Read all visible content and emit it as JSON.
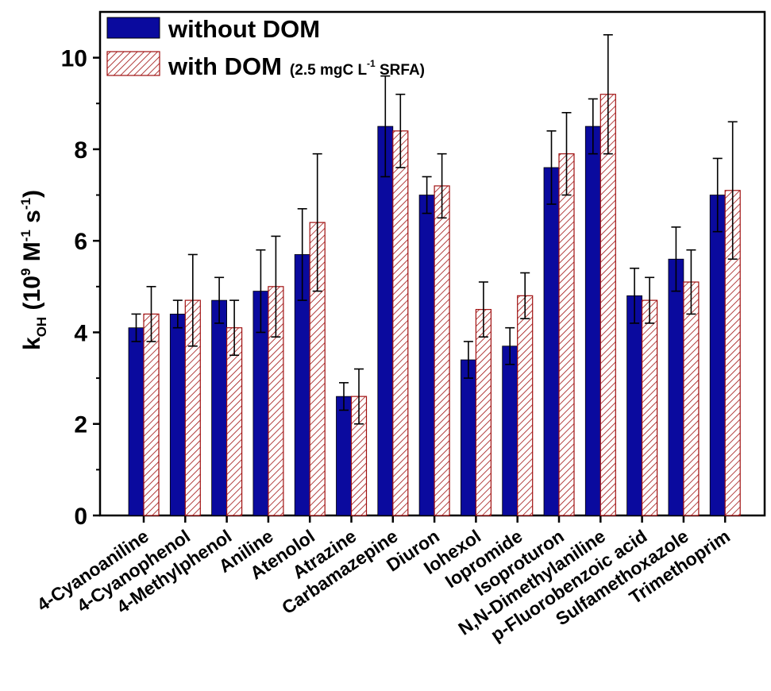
{
  "chart_data": {
    "type": "bar",
    "title": "",
    "xlabel": "",
    "ylabel": {
      "k": "k",
      "k_sub": "OH",
      "open": " (10",
      "exp1": "9",
      "mid": " M",
      "exp2": "-1",
      "mid2": " s",
      "exp3": "-1",
      "close": ")"
    },
    "ylim": [
      0,
      11
    ],
    "yticks": [
      0,
      2,
      4,
      6,
      8,
      10
    ],
    "grid": false,
    "legend_position": "top-left",
    "categories": [
      "4-Cyanoaniline",
      "4-Cyanophenol",
      "4-Methylphenol",
      "Aniline",
      "Atenolol",
      "Atrazine",
      "Carbamazepine",
      "Diuron",
      "Iohexol",
      "Iopromide",
      "Isoproturon",
      "N,N-Dimethylaniline",
      "p-Fluorobenzoic acid",
      "Sulfamethoxazole",
      "Trimethoprim"
    ],
    "series": [
      {
        "name": "without DOM",
        "color": "#0a0a9e",
        "fill": "solid",
        "values": [
          4.1,
          4.4,
          4.7,
          4.9,
          5.7,
          2.6,
          8.5,
          7.0,
          3.4,
          3.7,
          7.6,
          8.5,
          4.8,
          5.6,
          7.0
        ],
        "errors": [
          0.3,
          0.3,
          0.5,
          0.9,
          1.0,
          0.3,
          1.1,
          0.4,
          0.4,
          0.4,
          0.8,
          0.6,
          0.6,
          0.7,
          0.8
        ]
      },
      {
        "name": "with DOM",
        "name_suffix": "(2.5 mgC L",
        "name_suffix_exp": "-1",
        "name_suffix_end": " SRFA)",
        "color": "#a01010",
        "fill": "hatched",
        "values": [
          4.4,
          4.7,
          4.1,
          5.0,
          6.4,
          2.6,
          8.4,
          7.2,
          4.5,
          4.8,
          7.9,
          9.2,
          4.7,
          5.1,
          7.1
        ],
        "errors": [
          0.6,
          1.0,
          0.6,
          1.1,
          1.5,
          0.6,
          0.8,
          0.7,
          0.6,
          0.5,
          0.9,
          1.3,
          0.5,
          0.7,
          1.5
        ]
      }
    ]
  }
}
